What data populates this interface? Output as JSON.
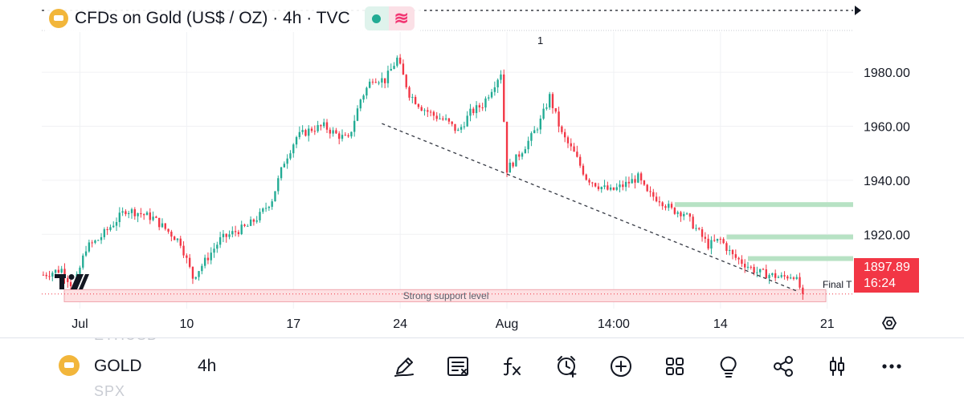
{
  "header": {
    "title": "CFDs on Gold (US$ / OZ) · 4h · TVC"
  },
  "chart_data": {
    "type": "candlestick",
    "symbol": "CFDs on Gold (US$ / OZ)",
    "timeframe": "4h",
    "source": "TVC",
    "y_ticks": [
      "1980.00",
      "1960.00",
      "1940.00",
      "1920.00"
    ],
    "y_tick_values": [
      1980,
      1960,
      1940,
      1920
    ],
    "ylim": [
      1889.5,
      1988.5
    ],
    "x_ticks": [
      "Jul",
      "10",
      "17",
      "24",
      "Aug",
      "14:00",
      "14",
      "21"
    ],
    "x_tick_bars": [
      12,
      47,
      82,
      117,
      152,
      187,
      222,
      257
    ],
    "bar_count": 266,
    "last_price": "1897.89",
    "countdown": "16:24",
    "annotations": {
      "support_label": "Strong support level",
      "support_zone": [
        1895.0,
        1899.5
      ],
      "marker_label": "1",
      "final_label": "Final T",
      "trendline": {
        "from_bar": 111,
        "from_price": 1961.0,
        "to_bar": 247,
        "to_price": 1899.0
      },
      "resistance_levels": [
        {
          "price": 1931.0,
          "from_bar": 207
        },
        {
          "price": 1919.0,
          "from_bar": 224
        },
        {
          "price": 1911.0,
          "from_bar": 231
        }
      ]
    },
    "waypoints": [
      [
        0,
        1905
      ],
      [
        6,
        1907
      ],
      [
        10,
        1900
      ],
      [
        14,
        1915
      ],
      [
        18,
        1918
      ],
      [
        23,
        1924
      ],
      [
        27,
        1929
      ],
      [
        31,
        1928
      ],
      [
        36,
        1926
      ],
      [
        40,
        1922
      ],
      [
        45,
        1917
      ],
      [
        49,
        1904
      ],
      [
        53,
        1910
      ],
      [
        58,
        1918
      ],
      [
        63,
        1921
      ],
      [
        67,
        1923
      ],
      [
        71,
        1927
      ],
      [
        75,
        1933
      ],
      [
        79,
        1947
      ],
      [
        83,
        1956
      ],
      [
        88,
        1959
      ],
      [
        92,
        1960
      ],
      [
        96,
        1957
      ],
      [
        100,
        1955
      ],
      [
        104,
        1970
      ],
      [
        108,
        1978
      ],
      [
        112,
        1977
      ],
      [
        116,
        1985
      ],
      [
        120,
        1972
      ],
      [
        124,
        1967
      ],
      [
        128,
        1964
      ],
      [
        132,
        1962
      ],
      [
        136,
        1958
      ],
      [
        140,
        1965
      ],
      [
        144,
        1968
      ],
      [
        148,
        1976
      ],
      [
        150,
        1980
      ],
      [
        152,
        1944
      ],
      [
        155,
        1948
      ],
      [
        160,
        1956
      ],
      [
        163,
        1962
      ],
      [
        166,
        1971
      ],
      [
        170,
        1957
      ],
      [
        174,
        1950
      ],
      [
        178,
        1941
      ],
      [
        182,
        1938
      ],
      [
        186,
        1936
      ],
      [
        190,
        1938
      ],
      [
        195,
        1941
      ],
      [
        198,
        1935
      ],
      [
        202,
        1933
      ],
      [
        206,
        1929
      ],
      [
        210,
        1928
      ],
      [
        214,
        1922
      ],
      [
        218,
        1916
      ],
      [
        222,
        1918
      ],
      [
        226,
        1912
      ],
      [
        230,
        1909
      ],
      [
        234,
        1906
      ],
      [
        238,
        1905
      ],
      [
        242,
        1904
      ],
      [
        246,
        1905
      ],
      [
        249,
        1898
      ]
    ]
  },
  "bottom_bar": {
    "symbol": "GOLD",
    "timeframe": "4h",
    "ghost_above": "ETHUSD",
    "ghost_below": "SPX",
    "tools": [
      "pencil-icon",
      "news-icon",
      "fx-icon",
      "alert-clock-icon",
      "plus-icon",
      "layout-grid-icon",
      "idea-bulb-icon",
      "share-icon",
      "candle-type-icon",
      "more-icon"
    ]
  },
  "colors": {
    "up": "#22ab94",
    "down": "#f23645",
    "support_fill": "#fde0e2",
    "resistance": "#b7e2c4",
    "text": "#131722"
  }
}
